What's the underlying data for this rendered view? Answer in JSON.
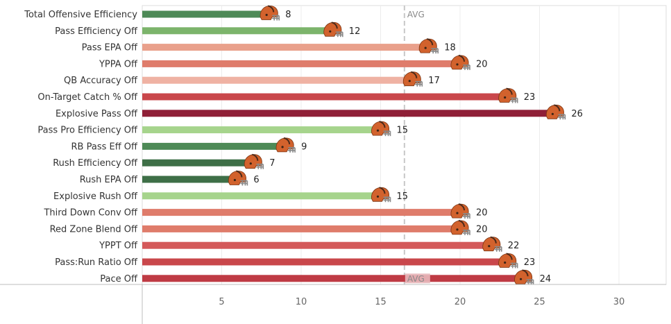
{
  "chart_data": {
    "type": "bar",
    "orientation": "horizontal",
    "title": "",
    "xlabel": "",
    "ylabel": "",
    "xlim": [
      0,
      33
    ],
    "xticks": [
      5,
      10,
      15,
      20,
      25,
      30
    ],
    "avg_label": "AVG",
    "avg_value": 16.5,
    "marker_icon": "football-helmet-icon",
    "marker_colors": {
      "shell": "#d2622d",
      "stripe": "#4a2a1a",
      "facemask": "#888888"
    },
    "categories": [
      "Total Offensive Efficiency",
      "Pass Efficiency Off",
      "Pass EPA Off",
      "YPPA Off",
      "QB Accuracy Off",
      "On-Target Catch % Off",
      "Explosive Pass Off",
      "Pass Pro Efficiency Off",
      "RB Pass Eff Off",
      "Rush Efficiency Off",
      "Rush EPA Off",
      "Explosive Rush Off",
      "Third Down Conv Off",
      "Red Zone Blend Off",
      "YPPT Off",
      "Pass:Run Ratio Off",
      "Pace Off"
    ],
    "values": [
      8,
      12,
      18,
      20,
      17,
      23,
      26,
      15,
      9,
      7,
      6,
      15,
      20,
      20,
      22,
      23,
      24
    ],
    "colors": [
      "#4e8a57",
      "#7cb46b",
      "#e9a08b",
      "#df7c6b",
      "#efb2a3",
      "#c9474b",
      "#8f1f37",
      "#a6d48c",
      "#4e8a57",
      "#3e6f47",
      "#3e6f47",
      "#a6d48c",
      "#df7c6b",
      "#df7c6b",
      "#d4595a",
      "#c9474b",
      "#bf3b44"
    ]
  }
}
